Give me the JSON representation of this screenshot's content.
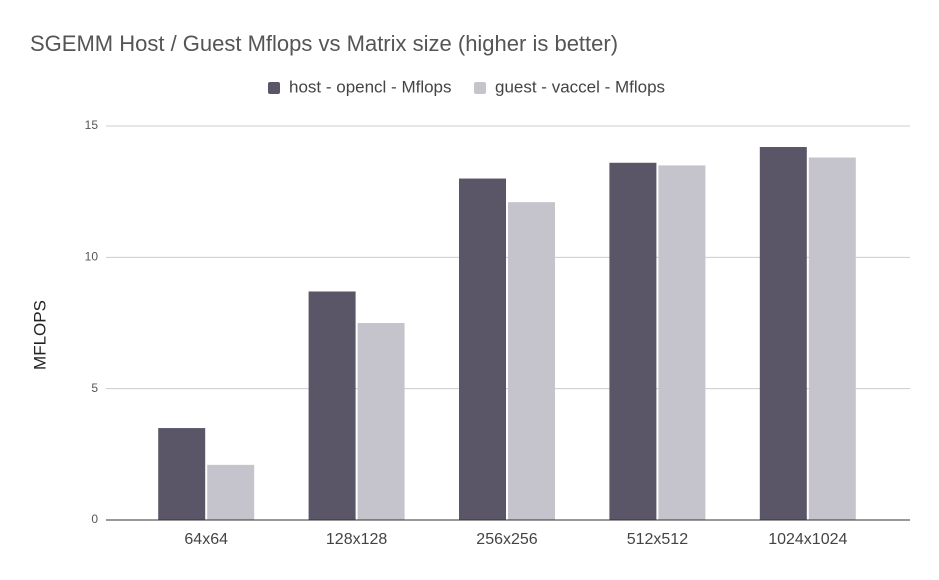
{
  "chart_data": {
    "type": "bar",
    "title": "SGEMM Host / Guest Mflops vs Matrix size (higher is better)",
    "y_label": "MFLOPS",
    "categories": [
      "64x64",
      "128x128",
      "256x256",
      "512x512",
      "1024x1024"
    ],
    "series": [
      {
        "name": "host - opencl - Mflops",
        "color": "#5a5668",
        "values": [
          3.5,
          8.7,
          13.0,
          13.6,
          14.2
        ]
      },
      {
        "name": "guest - vaccel - Mflops",
        "color": "#c5c4cc",
        "values": [
          2.1,
          7.5,
          12.1,
          13.5,
          13.8
        ]
      }
    ],
    "ylim": [
      0,
      15
    ],
    "yticks": [
      0,
      5,
      10,
      15
    ],
    "grid": true,
    "legend": "top"
  }
}
